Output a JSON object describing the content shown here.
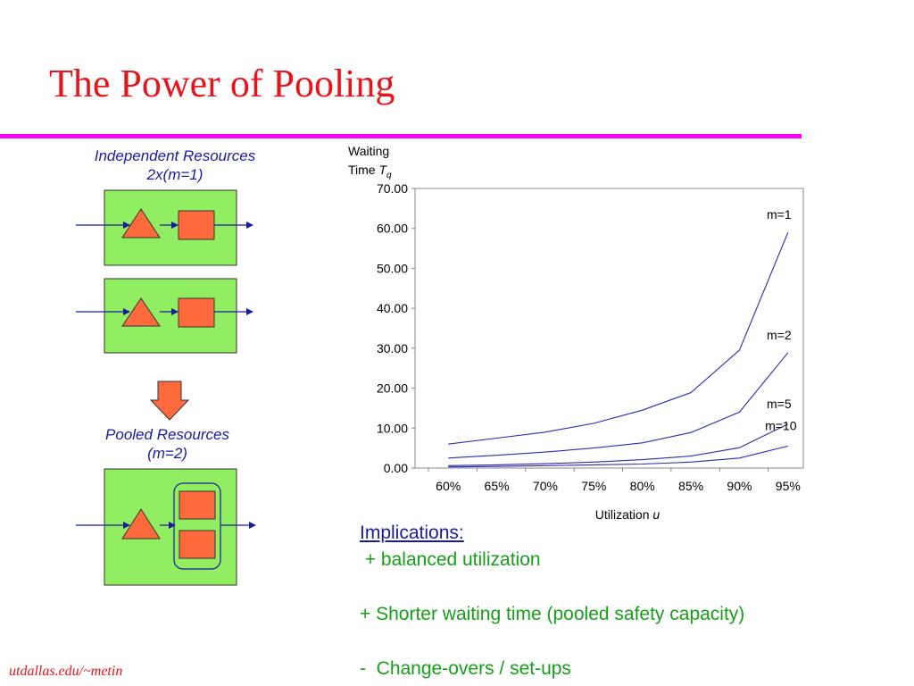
{
  "slide": {
    "title": "The Power of Pooling",
    "accent_color": "#ff00ff",
    "title_color": "#e8141c",
    "footer": "utdallas.edu/~metin"
  },
  "diagram": {
    "independent_label_line1": "Independent Resources",
    "independent_label_line2": "2x(m=1)",
    "pooled_label_line1": "Pooled Resources",
    "pooled_label_line2": "(m=2)",
    "box_color": "#90ee60",
    "shape_color": "#ff6a3c",
    "arrow_color": "#1a1aa0"
  },
  "chart_data": {
    "type": "line",
    "ylabel_line1": "Waiting",
    "ylabel_line2": "Time ",
    "ylabel_symbol": "T",
    "ylabel_subscript": "q",
    "xlabel": "Utilization ",
    "xlabel_symbol": "u",
    "categories": [
      "60%",
      "65%",
      "70%",
      "75%",
      "80%",
      "85%",
      "90%",
      "95%"
    ],
    "y_ticks": [
      "0.00",
      "10.00",
      "20.00",
      "30.00",
      "40.00",
      "50.00",
      "60.00",
      "70.00"
    ],
    "ylim": [
      0,
      70
    ],
    "grid": false,
    "series": [
      {
        "name": "m=1",
        "values": [
          6.0,
          7.5,
          9.0,
          11.2,
          14.5,
          18.9,
          29.5,
          59.0
        ]
      },
      {
        "name": "m=2",
        "values": [
          2.5,
          3.2,
          4.0,
          5.0,
          6.3,
          8.9,
          14.0,
          28.9
        ]
      },
      {
        "name": "m=5",
        "values": [
          0.6,
          0.8,
          1.1,
          1.5,
          2.1,
          3.0,
          5.1,
          11.0
        ]
      },
      {
        "name": "m=10",
        "values": [
          0.3,
          0.4,
          0.6,
          0.8,
          1.0,
          1.5,
          2.5,
          5.5
        ]
      }
    ]
  },
  "implications": {
    "heading": "Implications:",
    "line1": " + balanced utilization",
    "line2": "+ Shorter waiting time (pooled safety capacity)",
    "line3": "-  Change-overs / set-ups"
  }
}
